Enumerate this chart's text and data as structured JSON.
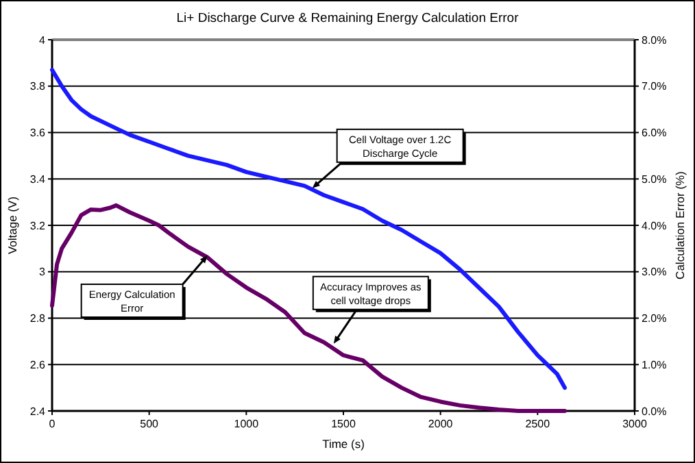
{
  "chart_data": {
    "type": "line",
    "title": "Li+ Discharge Curve & Remaining Energy Calculation Error",
    "xlabel": "Time (s)",
    "ylabel": "Voltage (V)",
    "y2label": "Calculation Error (%)",
    "xlim": [
      0,
      3000
    ],
    "xticks": [
      0,
      500,
      1000,
      1500,
      2000,
      2500,
      3000
    ],
    "ylim": [
      2.4,
      4
    ],
    "yticks": [
      2.4,
      2.6,
      2.8,
      3,
      3.2,
      3.4,
      3.6,
      3.8,
      4
    ],
    "y2lim": [
      0,
      8
    ],
    "y2ticks": [
      {
        "value": 0,
        "label": "0.0%"
      },
      {
        "value": 1,
        "label": "1.0%"
      },
      {
        "value": 2,
        "label": "2.0%"
      },
      {
        "value": 3,
        "label": "3.0%"
      },
      {
        "value": 4,
        "label": "4.0%"
      },
      {
        "value": 5,
        "label": "5.0%"
      },
      {
        "value": 6,
        "label": "6.0%"
      },
      {
        "value": 7,
        "label": "7.0%"
      },
      {
        "value": 8,
        "label": "8.0%"
      }
    ],
    "grid": "y",
    "marker": "none",
    "line_style": "solid",
    "series": [
      {
        "color": "#1a1aff",
        "x": [
          0,
          50,
          100,
          150,
          200,
          300,
          400,
          500,
          600,
          700,
          800,
          900,
          1000,
          1100,
          1200,
          1300,
          1400,
          1500,
          1600,
          1700,
          1800,
          1900,
          2000,
          2100,
          2200,
          2300,
          2400,
          2500,
          2550,
          2600,
          2640
        ],
        "values": [
          3.87,
          3.8,
          3.74,
          3.7,
          3.67,
          3.63,
          3.59,
          3.56,
          3.53,
          3.5,
          3.48,
          3.46,
          3.43,
          3.41,
          3.39,
          3.37,
          3.33,
          3.3,
          3.27,
          3.22,
          3.18,
          3.13,
          3.08,
          3.01,
          2.93,
          2.85,
          2.74,
          2.64,
          2.6,
          2.56,
          2.5
        ]
      },
      {
        "color": "#660066",
        "axis": "y2",
        "x": [
          0,
          25,
          50,
          100,
          150,
          200,
          250,
          300,
          330,
          400,
          500,
          550,
          600,
          700,
          800,
          900,
          1000,
          1100,
          1200,
          1300,
          1400,
          1500,
          1600,
          1700,
          1800,
          1900,
          2000,
          2100,
          2200,
          2300,
          2400,
          2500,
          2640
        ],
        "values": [
          2.27,
          3.16,
          3.5,
          3.84,
          4.22,
          4.34,
          4.33,
          4.38,
          4.43,
          4.28,
          4.1,
          4.0,
          3.84,
          3.54,
          3.31,
          2.95,
          2.66,
          2.42,
          2.13,
          1.68,
          1.48,
          1.2,
          1.09,
          0.74,
          0.5,
          0.3,
          0.2,
          0.12,
          0.07,
          0.03,
          0,
          0,
          0
        ]
      }
    ],
    "annotations": [
      {
        "text": "Cell Voltage over 1.2C Discharge Cycle",
        "x": 1340,
        "y": 3.36
      },
      {
        "text": "Energy Calculation Error",
        "x": 800,
        "y": 3.07
      },
      {
        "text": "Accuracy Improves as cell voltage drops",
        "x": 1450,
        "y": 2.69
      }
    ]
  }
}
